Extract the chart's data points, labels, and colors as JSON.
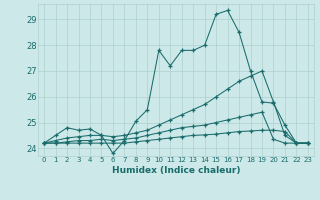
{
  "xlabel": "Humidex (Indice chaleur)",
  "bg_color": "#cce8e8",
  "grid_color": "#aed0d0",
  "line_color": "#1a6b6b",
  "xlim": [
    -0.5,
    23.5
  ],
  "ylim": [
    23.7,
    29.6
  ],
  "yticks": [
    24,
    25,
    26,
    27,
    28,
    29
  ],
  "xticks": [
    0,
    1,
    2,
    3,
    4,
    5,
    6,
    7,
    8,
    9,
    10,
    11,
    12,
    13,
    14,
    15,
    16,
    17,
    18,
    19,
    20,
    21,
    22,
    23
  ],
  "line1_y": [
    24.2,
    24.5,
    24.8,
    24.7,
    24.75,
    24.5,
    23.8,
    24.3,
    25.05,
    25.5,
    27.8,
    27.2,
    27.8,
    27.8,
    28.0,
    29.2,
    29.35,
    28.5,
    27.0,
    25.8,
    25.75,
    24.9,
    24.2,
    24.2
  ],
  "line2_y": [
    24.2,
    24.3,
    24.4,
    24.45,
    24.5,
    24.5,
    24.45,
    24.5,
    24.6,
    24.7,
    24.9,
    25.1,
    25.3,
    25.5,
    25.7,
    26.0,
    26.3,
    26.6,
    26.8,
    27.0,
    25.8,
    24.5,
    24.2,
    24.2
  ],
  "line3_y": [
    24.2,
    24.2,
    24.25,
    24.3,
    24.3,
    24.35,
    24.3,
    24.35,
    24.4,
    24.5,
    24.6,
    24.7,
    24.8,
    24.85,
    24.9,
    25.0,
    25.1,
    25.2,
    25.3,
    25.4,
    24.35,
    24.2,
    24.2,
    24.2
  ],
  "line4_y": [
    24.2,
    24.2,
    24.2,
    24.2,
    24.2,
    24.2,
    24.2,
    24.2,
    24.25,
    24.3,
    24.35,
    24.4,
    24.45,
    24.5,
    24.52,
    24.55,
    24.6,
    24.65,
    24.67,
    24.7,
    24.7,
    24.65,
    24.2,
    24.2
  ]
}
